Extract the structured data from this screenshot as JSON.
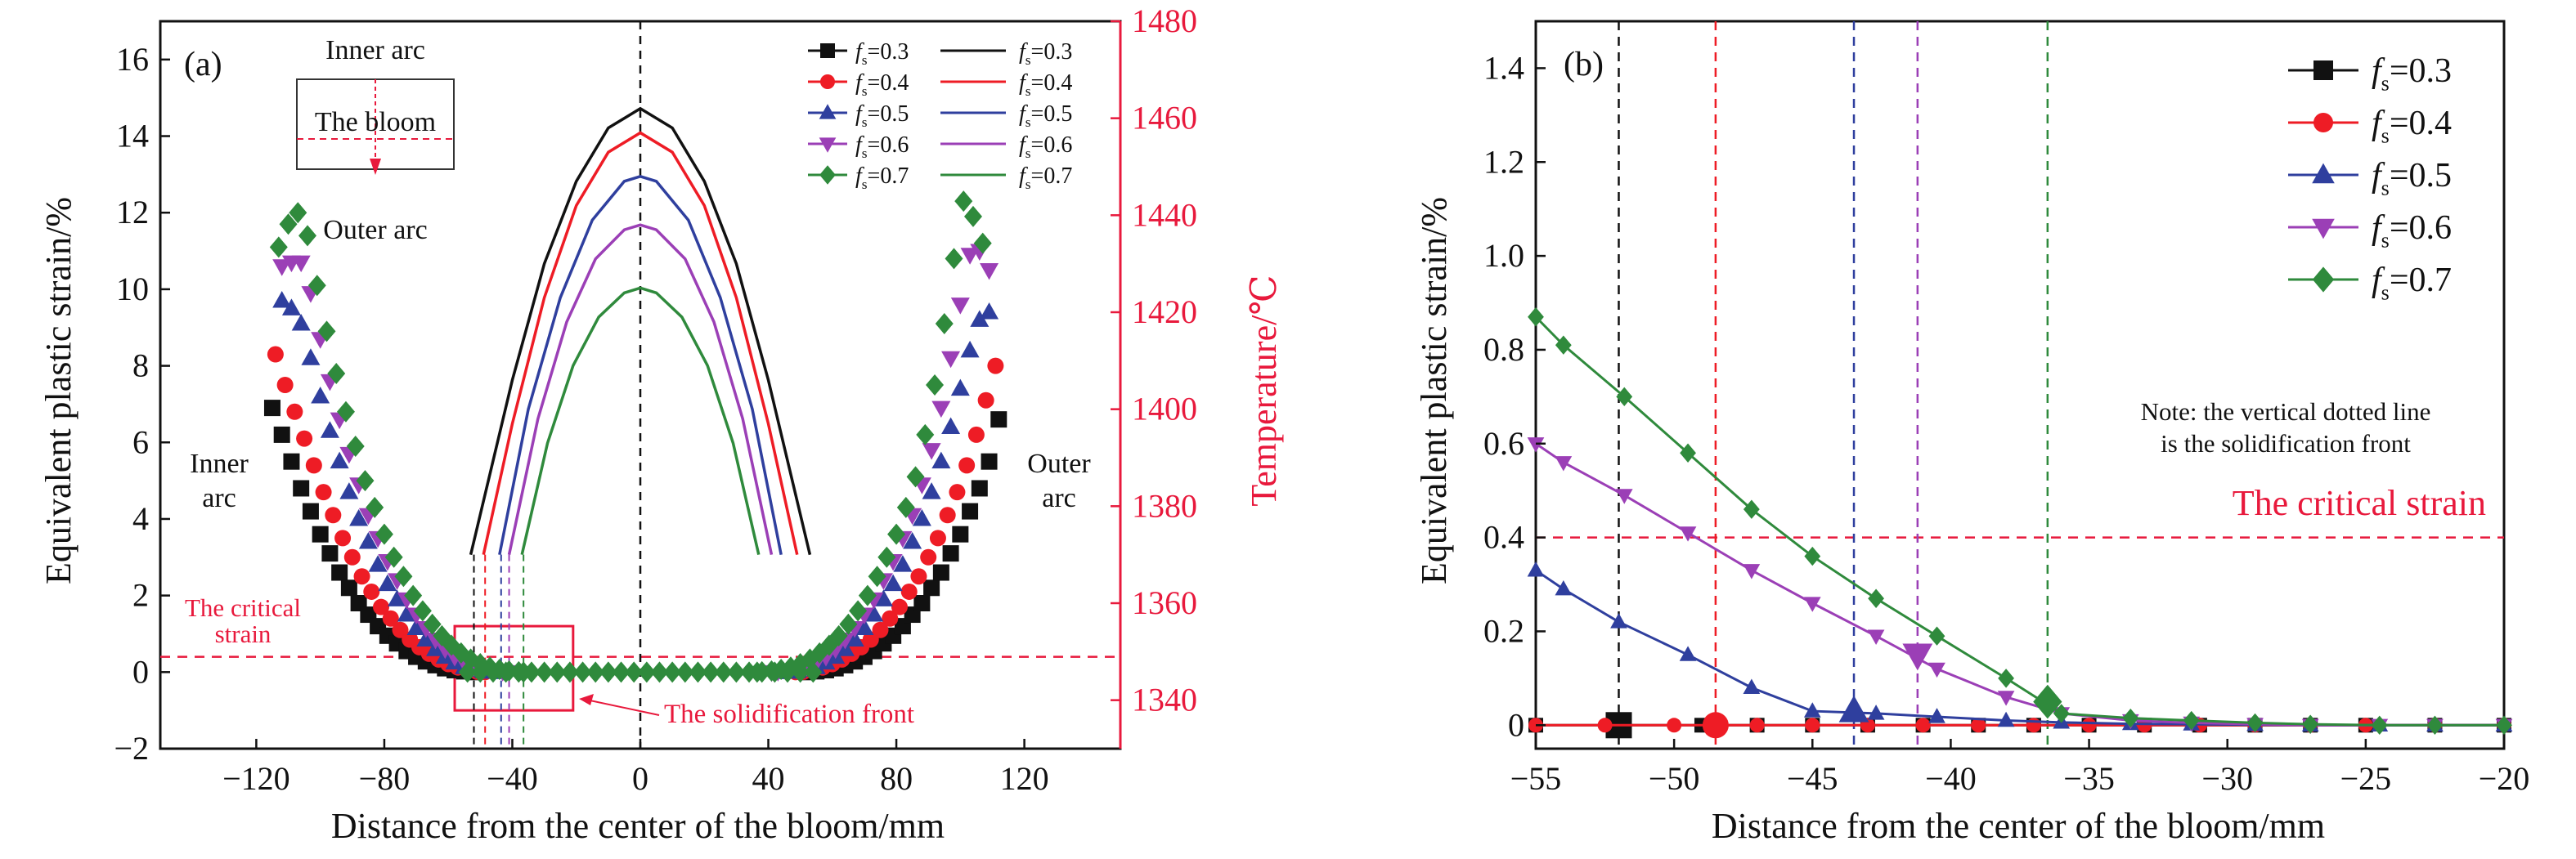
{
  "colors": {
    "fs03": "#111111",
    "fs04": "#ee1c25",
    "fs05": "#2f3f9e",
    "fs06": "#9b3fb6",
    "fs07": "#2f8a3c",
    "critical": "#e8193c",
    "temp_axis": "#e8193c",
    "axis": "#111111"
  },
  "chart_data": [
    {
      "panel": "a",
      "type": "scatter",
      "panel_label": "(a)",
      "xlabel": "Distance from the center of the bloom/mm",
      "ylabel": "Equivalent plastic strain/%",
      "y2label": "Temperature/℃",
      "xlim": [
        -150,
        150
      ],
      "ylim": [
        -2,
        17
      ],
      "y2lim": [
        1330,
        1480
      ],
      "x_ticks": [
        "−120",
        "−80",
        "−40",
        "0",
        "40",
        "80",
        "120"
      ],
      "x_tick_values": [
        -120,
        -80,
        -40,
        0,
        40,
        80,
        120
      ],
      "y_ticks": [
        "−2",
        "0",
        "2",
        "4",
        "6",
        "8",
        "10",
        "12",
        "14",
        "16"
      ],
      "y_tick_values": [
        -2,
        0,
        2,
        4,
        6,
        8,
        10,
        12,
        14,
        16
      ],
      "y2_ticks": [
        "1340",
        "1360",
        "1380",
        "1400",
        "1420",
        "1440",
        "1460",
        "1480"
      ],
      "y2_tick_values": [
        1340,
        1360,
        1380,
        1400,
        1420,
        1440,
        1460,
        1480
      ],
      "critical_strain": 0.4,
      "critical_label": [
        "The critical",
        "strain"
      ],
      "solidification_front_label": "The solidification front",
      "front_positions": [
        -52,
        -48.5,
        -43.5,
        -41,
        -36.5
      ],
      "box": {
        "x": [
          -58,
          -21
        ],
        "y": [
          -1.0,
          1.2
        ]
      },
      "annotations": {
        "inner_arc_left": [
          "Inner",
          "arc"
        ],
        "outer_arc_right": [
          "Outer",
          "arc"
        ],
        "inset_top": "Inner arc",
        "inset_middle": "The bloom",
        "inset_bottom": "Outer arc"
      },
      "legend_markers": [
        "f",
        "f",
        "f",
        "f",
        "f"
      ],
      "series": [
        {
          "name": "fs=0.3",
          "fs_sub": "s",
          "fs_val": "=0.3",
          "color_key": "fs03",
          "marker": "square",
          "strain_left_x": [
            -115,
            -112,
            -109,
            -106,
            -103,
            -100,
            -97,
            -94,
            -91,
            -88,
            -85,
            -82,
            -79,
            -76,
            -73,
            -70,
            -67,
            -64,
            -61,
            -58,
            -55,
            -52
          ],
          "strain_left_y": [
            6.9,
            6.2,
            5.5,
            4.8,
            4.2,
            3.6,
            3.1,
            2.6,
            2.2,
            1.8,
            1.5,
            1.2,
            0.95,
            0.75,
            0.55,
            0.4,
            0.28,
            0.18,
            0.1,
            0.05,
            0.02,
            0.0
          ],
          "strain_right_x": [
            52,
            55,
            58,
            61,
            64,
            67,
            70,
            73,
            76,
            79,
            82,
            85,
            88,
            91,
            94,
            97,
            100,
            103,
            106,
            109,
            112
          ],
          "strain_right_y": [
            0.0,
            0.02,
            0.05,
            0.1,
            0.18,
            0.28,
            0.4,
            0.55,
            0.75,
            0.95,
            1.2,
            1.5,
            1.8,
            2.2,
            2.6,
            3.1,
            3.6,
            4.2,
            4.8,
            5.5,
            6.6
          ],
          "temp_x": [
            -53,
            -40,
            -30,
            -20,
            -10,
            0,
            10,
            20,
            30,
            40,
            53
          ],
          "temp_y": [
            1370,
            1406,
            1430,
            1447,
            1458,
            1462,
            1458,
            1447,
            1430,
            1406,
            1370
          ]
        },
        {
          "name": "fs=0.4",
          "fs_sub": "s",
          "fs_val": "=0.4",
          "color_key": "fs04",
          "marker": "circle",
          "strain_left_x": [
            -114,
            -111,
            -108,
            -105,
            -102,
            -99,
            -96,
            -93,
            -90,
            -87,
            -84,
            -81,
            -78,
            -75,
            -72,
            -69,
            -66,
            -63,
            -60,
            -57,
            -54,
            -51,
            -48.5
          ],
          "strain_left_y": [
            8.3,
            7.5,
            6.8,
            6.1,
            5.4,
            4.7,
            4.1,
            3.5,
            3.0,
            2.5,
            2.1,
            1.7,
            1.4,
            1.1,
            0.85,
            0.65,
            0.48,
            0.33,
            0.21,
            0.12,
            0.05,
            0.01,
            0.0
          ],
          "strain_right_x": [
            48.5,
            51,
            54,
            57,
            60,
            63,
            66,
            69,
            72,
            75,
            78,
            81,
            84,
            87,
            90,
            93,
            96,
            99,
            102,
            105,
            108,
            111
          ],
          "strain_right_y": [
            0.0,
            0.01,
            0.05,
            0.12,
            0.21,
            0.33,
            0.48,
            0.65,
            0.85,
            1.1,
            1.4,
            1.7,
            2.1,
            2.5,
            3.0,
            3.5,
            4.1,
            4.7,
            5.4,
            6.2,
            7.1,
            8.0
          ],
          "temp_x": [
            -49,
            -40,
            -30,
            -20,
            -10,
            0,
            10,
            20,
            30,
            40,
            49
          ],
          "temp_y": [
            1370,
            1397,
            1423,
            1442,
            1453,
            1457,
            1453,
            1442,
            1423,
            1397,
            1370
          ]
        },
        {
          "name": "fs=0.5",
          "fs_sub": "s",
          "fs_val": "=0.5",
          "color_key": "fs05",
          "marker": "triangle-up",
          "strain_left_x": [
            -112,
            -109,
            -106,
            -103,
            -100,
            -97,
            -94,
            -91,
            -88,
            -85,
            -82,
            -79,
            -76,
            -73,
            -70,
            -67,
            -64,
            -61,
            -58,
            -55,
            -52,
            -49,
            -46,
            -43.5
          ],
          "strain_left_y": [
            9.7,
            9.5,
            9.1,
            8.2,
            7.2,
            6.3,
            5.5,
            4.7,
            4.0,
            3.4,
            2.8,
            2.3,
            1.9,
            1.5,
            1.15,
            0.85,
            0.6,
            0.4,
            0.25,
            0.13,
            0.06,
            0.02,
            0.01,
            0.0
          ],
          "strain_right_x": [
            43.5,
            46,
            49,
            52,
            55,
            58,
            61,
            64,
            67,
            70,
            73,
            76,
            79,
            82,
            85,
            88,
            91,
            94,
            97,
            100,
            103,
            106,
            109
          ],
          "strain_right_y": [
            0.0,
            0.01,
            0.02,
            0.06,
            0.13,
            0.25,
            0.4,
            0.6,
            0.85,
            1.15,
            1.5,
            1.9,
            2.3,
            2.8,
            3.4,
            4.0,
            4.7,
            5.5,
            6.4,
            7.4,
            8.4,
            9.2,
            9.4
          ],
          "temp_x": [
            -44,
            -35,
            -25,
            -15,
            -5,
            0,
            5,
            15,
            25,
            35,
            44
          ],
          "temp_y": [
            1370,
            1400,
            1423,
            1439,
            1447,
            1448,
            1447,
            1439,
            1423,
            1400,
            1370
          ]
        },
        {
          "name": "fs=0.6",
          "fs_sub": "s",
          "fs_val": "=0.6",
          "color_key": "fs06",
          "marker": "triangle-down",
          "strain_left_x": [
            -112,
            -109,
            -106,
            -103,
            -100,
            -97,
            -94,
            -91,
            -88,
            -85,
            -82,
            -79,
            -76,
            -73,
            -70,
            -67,
            -64,
            -61,
            -58,
            -55,
            -52,
            -49,
            -46,
            -43,
            -41
          ],
          "strain_left_y": [
            10.6,
            10.7,
            10.7,
            9.9,
            8.7,
            7.6,
            6.6,
            5.7,
            4.9,
            4.1,
            3.5,
            2.9,
            2.4,
            1.9,
            1.5,
            1.15,
            0.85,
            0.6,
            0.4,
            0.25,
            0.14,
            0.07,
            0.03,
            0.01,
            0.0
          ],
          "strain_right_x": [
            41,
            43,
            46,
            49,
            52,
            55,
            58,
            61,
            64,
            67,
            70,
            73,
            76,
            79,
            82,
            85,
            88,
            91,
            94,
            97,
            100,
            103,
            106,
            109
          ],
          "strain_right_y": [
            0.0,
            0.01,
            0.03,
            0.07,
            0.14,
            0.25,
            0.4,
            0.6,
            0.85,
            1.15,
            1.5,
            1.9,
            2.4,
            2.9,
            3.5,
            4.1,
            4.9,
            5.8,
            6.9,
            8.2,
            9.6,
            10.9,
            11.0,
            10.5
          ],
          "temp_x": [
            -41,
            -32,
            -23,
            -14,
            -5,
            0,
            5,
            14,
            23,
            32,
            41
          ],
          "temp_y": [
            1370,
            1398,
            1418,
            1431,
            1437,
            1438,
            1437,
            1431,
            1418,
            1398,
            1370
          ]
        },
        {
          "name": "fs=0.7",
          "fs_sub": "s",
          "fs_val": "=0.7",
          "color_key": "fs07",
          "marker": "diamond",
          "strain_left_x": [
            -113,
            -110,
            -107,
            -104,
            -101,
            -98,
            -95,
            -92,
            -89,
            -86,
            -83,
            -80,
            -77,
            -74,
            -71,
            -68,
            -65,
            -62,
            -59,
            -56,
            -53,
            -50,
            -47,
            -44,
            -41,
            -38,
            -36.5
          ],
          "strain_left_y": [
            11.1,
            11.7,
            12.0,
            11.4,
            10.1,
            8.9,
            7.8,
            6.8,
            5.9,
            5.0,
            4.3,
            3.6,
            3.0,
            2.5,
            2.0,
            1.6,
            1.25,
            0.95,
            0.7,
            0.5,
            0.34,
            0.22,
            0.13,
            0.07,
            0.03,
            0.01,
            0.0
          ],
          "strain_right_x": [
            36.5,
            38,
            41,
            44,
            47,
            50,
            53,
            56,
            59,
            62,
            65,
            68,
            71,
            74,
            77,
            80,
            83,
            86,
            89,
            92,
            95,
            98,
            101,
            104,
            107
          ],
          "strain_right_y": [
            0.0,
            0.01,
            0.03,
            0.07,
            0.13,
            0.22,
            0.34,
            0.5,
            0.7,
            0.95,
            1.25,
            1.6,
            2.0,
            2.5,
            3.0,
            3.6,
            4.3,
            5.1,
            6.2,
            7.5,
            9.1,
            10.8,
            12.3,
            11.9,
            11.2
          ],
          "temp_x": [
            -37,
            -29,
            -21,
            -13,
            -5,
            0,
            5,
            13,
            21,
            29,
            37
          ],
          "temp_y": [
            1370,
            1393,
            1409,
            1419,
            1424,
            1425,
            1424,
            1419,
            1409,
            1393,
            1370
          ]
        }
      ],
      "zero_plateau_x": [
        -54,
        -50,
        -46,
        -42,
        -38,
        -34,
        -30,
        -26,
        -22,
        -18,
        -14,
        -10,
        -6,
        -2,
        2,
        6,
        10,
        14,
        18,
        22,
        26,
        30,
        34,
        38,
        42,
        46,
        50,
        54
      ]
    },
    {
      "panel": "b",
      "type": "line",
      "panel_label": "(b)",
      "xlabel": "Distance from the center of the bloom/mm",
      "ylabel": "Equivalent plastic strain/%",
      "xlim": [
        -55,
        -20
      ],
      "ylim": [
        -0.05,
        1.5
      ],
      "x_ticks": [
        "−55",
        "−50",
        "−45",
        "−40",
        "−35",
        "−30",
        "−25",
        "−20"
      ],
      "x_tick_values": [
        -55,
        -50,
        -45,
        -40,
        -35,
        -30,
        -25,
        -20
      ],
      "y_ticks": [
        "0",
        "0.2",
        "0.4",
        "0.6",
        "0.8",
        "1.0",
        "1.2",
        "1.4"
      ],
      "y_tick_values": [
        0,
        0.2,
        0.4,
        0.6,
        0.8,
        1.0,
        1.2,
        1.4
      ],
      "critical_strain": 0.4,
      "critical_label": "The critical strain",
      "note": [
        "Note: the vertical dotted line",
        "is the solidification front"
      ],
      "series": [
        {
          "name": "fs=0.3",
          "fs_sub": "s",
          "fs_val": "=0.3",
          "color_key": "fs03",
          "marker": "square",
          "front": -52,
          "front_y": 0.0,
          "x": [
            -55,
            -52,
            -49,
            -47,
            -45,
            -43,
            -41,
            -39,
            -37,
            -35,
            -33,
            -31,
            -29,
            -27,
            -25,
            -22.5,
            -20
          ],
          "y": [
            0,
            0,
            0,
            0,
            0,
            0,
            0,
            0,
            0,
            0,
            0,
            0,
            0,
            0,
            0,
            0,
            0
          ]
        },
        {
          "name": "fs=0.4",
          "fs_sub": "s",
          "fs_val": "=0.4",
          "color_key": "fs04",
          "marker": "circle",
          "front": -48.5,
          "front_y": 0.0,
          "x": [
            -55,
            -52.5,
            -50,
            -47,
            -45,
            -43,
            -41,
            -39,
            -37,
            -35,
            -33,
            -31,
            -29,
            -27,
            -25,
            -22.5,
            -20
          ],
          "y": [
            0,
            0,
            0,
            0,
            0,
            0,
            0,
            0,
            0,
            0,
            0,
            0,
            0,
            0,
            0,
            0,
            0
          ]
        },
        {
          "name": "fs=0.5",
          "fs_sub": "s",
          "fs_val": "=0.5",
          "color_key": "fs05",
          "marker": "triangle-up",
          "front": -43.5,
          "front_y": 0.03,
          "x": [
            -55,
            -54,
            -52,
            -49.5,
            -47.2,
            -45,
            -42.7,
            -40.5,
            -38,
            -36,
            -33.5,
            -31.3,
            -29,
            -27,
            -24.5,
            -22.5,
            -20
          ],
          "y": [
            0.33,
            0.29,
            0.22,
            0.15,
            0.08,
            0.03,
            0.025,
            0.018,
            0.01,
            0.006,
            0.003,
            0.002,
            0.001,
            0,
            0,
            0,
            0
          ]
        },
        {
          "name": "fs=0.6",
          "fs_sub": "s",
          "fs_val": "=0.6",
          "color_key": "fs06",
          "marker": "triangle-down",
          "front": -41.2,
          "front_y": 0.15,
          "x": [
            -55,
            -54,
            -51.8,
            -49.5,
            -47.2,
            -45,
            -42.7,
            -40.5,
            -38,
            -36,
            -33.5,
            -31.3,
            -29,
            -27,
            -24.5,
            -22.5,
            -20
          ],
          "y": [
            0.6,
            0.56,
            0.49,
            0.41,
            0.33,
            0.26,
            0.19,
            0.12,
            0.06,
            0.025,
            0.01,
            0.005,
            0.002,
            0,
            0,
            0,
            0
          ]
        },
        {
          "name": "fs=0.7",
          "fs_sub": "s",
          "fs_val": "=0.7",
          "color_key": "fs07",
          "marker": "diamond",
          "front": -36.5,
          "front_y": 0.05,
          "x": [
            -55,
            -54,
            -51.8,
            -49.5,
            -47.2,
            -45,
            -42.7,
            -40.5,
            -38,
            -36,
            -33.5,
            -31.3,
            -29,
            -27,
            -24.5,
            -22.5,
            -20
          ],
          "y": [
            0.87,
            0.81,
            0.7,
            0.58,
            0.46,
            0.36,
            0.27,
            0.19,
            0.1,
            0.025,
            0.015,
            0.01,
            0.005,
            0.002,
            0,
            0,
            0
          ]
        }
      ]
    }
  ]
}
